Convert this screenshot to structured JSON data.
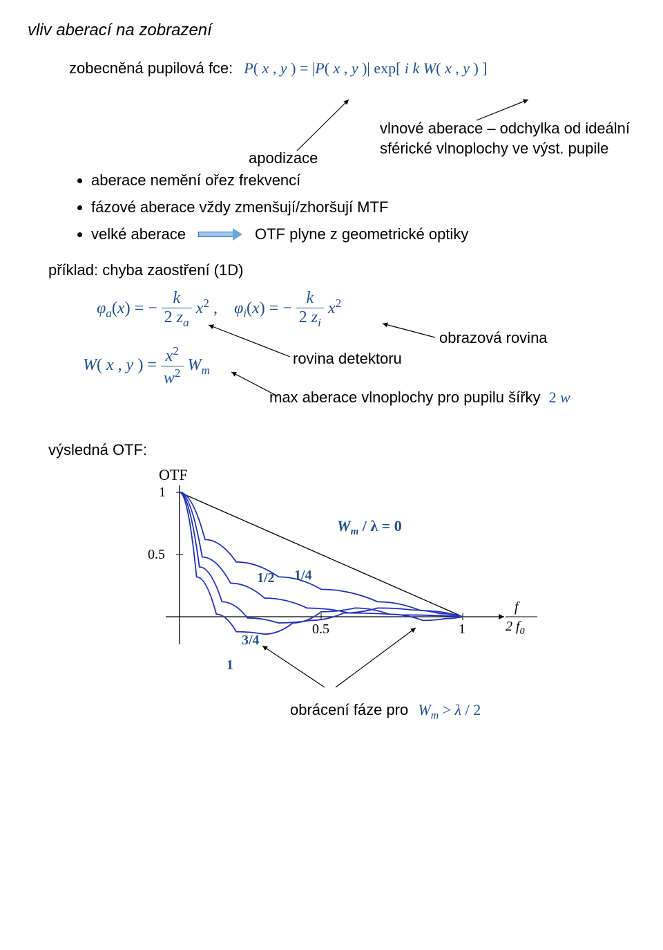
{
  "title": "vliv aberací na zobrazení",
  "pupil": {
    "label": "zobecněná pupilová fce:",
    "eq": "P( x , y ) = |P( x , y )| exp[ i k W( x , y ) ]",
    "apod_label": "apodizace",
    "wave_label": "vlnové aberace – odchylka od ideální sférické vlnoplochy ve výst. pupile"
  },
  "bullets": {
    "b1": "aberace nemění ořez frekvencí",
    "b2": "fázové aberace vždy zmenšují/zhoršují MTF",
    "b3a": "velké aberace",
    "b3b": "OTF plyne z geometrické optiky"
  },
  "example": {
    "heading": "příklad: chyba zaostření (1D)",
    "defocus_phi": "φ_a(x) = − k/(2 z_a) x² ,   φ_i(x) = − k/(2 z_i) x²",
    "W_eq": "W(x, y) = (x² / w²) W_m",
    "plane_det": "rovina detektoru",
    "plane_img": "obrazová rovina",
    "max_ab": "max aberace vlnoplochy pro pupilu šířky",
    "max_ab_sym": "2 w",
    "result_label": "výsledná OTF:"
  },
  "chart": {
    "ylabel": "OTF",
    "y_ticks": [
      "1",
      "0.5"
    ],
    "x_ticks": [
      "0.5",
      "1"
    ],
    "x_axis_right": {
      "num": "f",
      "den": "2 f₀"
    },
    "curve_labels": {
      "zero": "W_m / λ = 0",
      "quarter": "1/4",
      "half": "1/2",
      "three_quarter": "3/4",
      "one": "1"
    },
    "phase_note": "obrácení fáze pro",
    "phase_cond": "W_m > λ / 2",
    "colors": {
      "axis": "#000000",
      "curve0": "#000000",
      "curves": "#2030c0",
      "math": "#205090",
      "bg": "#ffffff"
    },
    "axis": {
      "x_range": [
        0,
        1
      ],
      "y_range": [
        -0.25,
        1
      ],
      "grid": false
    },
    "series": [
      {
        "label": "0",
        "type": "line",
        "color": "#000000",
        "x": [
          0,
          1
        ],
        "y": [
          1,
          0
        ]
      },
      {
        "label": "1/4",
        "type": "curve",
        "color": "#2030c0",
        "x": [
          0,
          0.09,
          0.2,
          0.35,
          0.5,
          0.7,
          0.85,
          1
        ],
        "y": [
          1,
          0.62,
          0.44,
          0.32,
          0.22,
          0.12,
          0.05,
          0
        ]
      },
      {
        "label": "1/2",
        "type": "curve",
        "color": "#2030c0",
        "x": [
          0,
          0.08,
          0.18,
          0.3,
          0.45,
          0.6,
          0.78,
          0.9,
          1
        ],
        "y": [
          1,
          0.48,
          0.27,
          0.15,
          0.07,
          0.03,
          0.015,
          0.01,
          0
        ]
      },
      {
        "label": "3/4",
        "type": "curve",
        "color": "#2030c0",
        "x": [
          0,
          0.07,
          0.15,
          0.24,
          0.35,
          0.46,
          0.58,
          0.7,
          0.82,
          0.92,
          1
        ],
        "y": [
          1,
          0.4,
          0.12,
          -0.01,
          -0.05,
          -0.03,
          0.03,
          0.07,
          0.055,
          0.025,
          0
        ]
      },
      {
        "label": "1",
        "type": "curve",
        "color": "#2030c0",
        "x": [
          0,
          0.06,
          0.13,
          0.2,
          0.3,
          0.4,
          0.5,
          0.62,
          0.74,
          0.86,
          0.94,
          1
        ],
        "y": [
          1,
          0.32,
          0.02,
          -0.12,
          -0.14,
          -0.05,
          0.04,
          0.07,
          0.02,
          -0.03,
          -0.015,
          0
        ]
      }
    ]
  }
}
